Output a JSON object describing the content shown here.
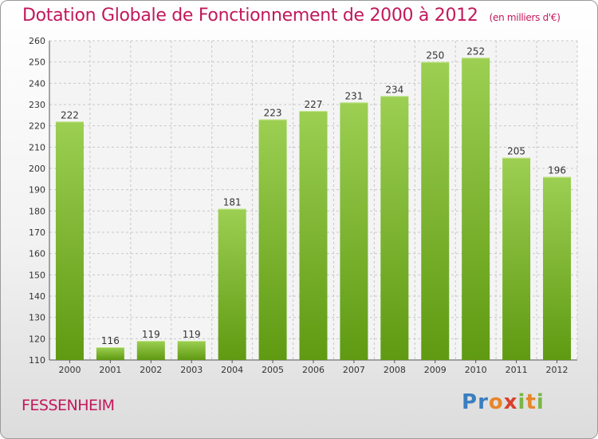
{
  "header": {
    "title": "Dotation Globale de Fonctionnement de 2000 à 2012",
    "subtitle": "(en milliers d'€)"
  },
  "footer": {
    "city": "FESSENHEIM",
    "logo": "Proxiti"
  },
  "colors": {
    "bar_light": "#9ccf52",
    "bar_dark": "#5f9a12",
    "title": "#c2185b"
  },
  "chart_data": {
    "type": "bar",
    "categories": [
      "2000",
      "2001",
      "2002",
      "2003",
      "2004",
      "2005",
      "2006",
      "2007",
      "2008",
      "2009",
      "2010",
      "2011",
      "2012"
    ],
    "values": [
      222,
      116,
      119,
      119,
      181,
      223,
      227,
      231,
      234,
      250,
      252,
      205,
      196
    ],
    "title": "Dotation Globale de Fonctionnement de 2000 à 2012",
    "subtitle": "(en milliers d'€)",
    "ylim": [
      110,
      260
    ],
    "yticks": [
      110,
      120,
      130,
      140,
      150,
      160,
      170,
      180,
      190,
      200,
      210,
      220,
      230,
      240,
      250,
      260
    ],
    "grid": true,
    "legend": "none"
  }
}
